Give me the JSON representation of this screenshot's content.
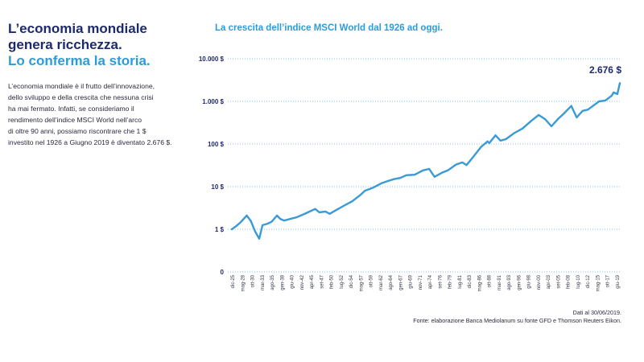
{
  "header": {
    "line1": "L’economia mondiale",
    "line2": "genera ricchezza.",
    "line3": "Lo conferma la storia."
  },
  "body": {
    "lines": [
      "L’economia mondiale è il frutto dell’innovazione,",
      "dello sviluppo e della crescita che nessuna crisi",
      "ha mai fermato. Infatti, se consideriamo il",
      "rendimento dell’indice MSCI World nell’arco",
      "di oltre 90 anni, possiamo riscontrare che 1 $",
      "investito nel 1926 a Giugno 2019 è diventato 2.676 $."
    ]
  },
  "footer": {
    "date": "Dati al 30/06/2019.",
    "source": "Fonte: elaborazione Banca Mediolanum su fonte GFD e Thomson Reuters Eikon."
  },
  "colors": {
    "navy": "#1e2a6e",
    "accent": "#2e9bd9",
    "line": "#3a9ad6",
    "grid": "#5aaee0"
  },
  "chart_data": {
    "type": "line",
    "title": "La crescita dell’indice MSCI World dal 1926 ad oggi.",
    "y_scale": "log",
    "y_ticks": [
      {
        "value": 0,
        "label": "0"
      },
      {
        "value": 1,
        "label": "1 $"
      },
      {
        "value": 10,
        "label": "10 $"
      },
      {
        "value": 100,
        "label": "100 $"
      },
      {
        "value": 1000,
        "label": "1.000 $"
      },
      {
        "value": 10000,
        "label": "10.000 $"
      }
    ],
    "grid": "horizontal dotted",
    "x_tick_labels": [
      "dic-25",
      "mag-28",
      "ott-30",
      "mar-33",
      "ago-35",
      "gen-38",
      "giu-40",
      "nov-42",
      "apr-45",
      "set-47",
      "feb-50",
      "lug-52",
      "dic-54",
      "mag-57",
      "ott-59",
      "mar-62",
      "ago-64",
      "gen-67",
      "giu-69",
      "nov-71",
      "apr-74",
      "set-76",
      "feb-79",
      "lug-81",
      "dic-83",
      "mag-86",
      "ott-88",
      "mar-91",
      "ago-93",
      "gen-96",
      "giu-98",
      "nov-00",
      "apr-03",
      "set-05",
      "feb-08",
      "lug-10",
      "dic-12",
      "mag-15",
      "ott-17",
      "giu-19"
    ],
    "series": [
      {
        "values": [
          {
            "x": 1925.9,
            "y": 1.0
          },
          {
            "x": 1927.0,
            "y": 1.2
          },
          {
            "x": 1928.0,
            "y": 1.45
          },
          {
            "x": 1929.5,
            "y": 2.1
          },
          {
            "x": 1930.5,
            "y": 1.55
          },
          {
            "x": 1931.5,
            "y": 0.9
          },
          {
            "x": 1932.5,
            "y": 0.6
          },
          {
            "x": 1933.3,
            "y": 1.25
          },
          {
            "x": 1934.5,
            "y": 1.35
          },
          {
            "x": 1935.5,
            "y": 1.5
          },
          {
            "x": 1936.8,
            "y": 2.1
          },
          {
            "x": 1937.6,
            "y": 1.75
          },
          {
            "x": 1938.5,
            "y": 1.6
          },
          {
            "x": 1940.0,
            "y": 1.75
          },
          {
            "x": 1941.5,
            "y": 1.9
          },
          {
            "x": 1943.0,
            "y": 2.2
          },
          {
            "x": 1945.0,
            "y": 2.7
          },
          {
            "x": 1946.0,
            "y": 3.0
          },
          {
            "x": 1947.0,
            "y": 2.5
          },
          {
            "x": 1948.5,
            "y": 2.6
          },
          {
            "x": 1949.5,
            "y": 2.3
          },
          {
            "x": 1951.0,
            "y": 2.8
          },
          {
            "x": 1953.0,
            "y": 3.6
          },
          {
            "x": 1955.0,
            "y": 4.6
          },
          {
            "x": 1957.0,
            "y": 6.5
          },
          {
            "x": 1958.0,
            "y": 8.0
          },
          {
            "x": 1960.0,
            "y": 9.5
          },
          {
            "x": 1962.0,
            "y": 12.0
          },
          {
            "x": 1963.5,
            "y": 13.5
          },
          {
            "x": 1965.0,
            "y": 15.0
          },
          {
            "x": 1966.5,
            "y": 16.0
          },
          {
            "x": 1968.0,
            "y": 18.5
          },
          {
            "x": 1970.0,
            "y": 19.0
          },
          {
            "x": 1972.0,
            "y": 24.0
          },
          {
            "x": 1973.5,
            "y": 26.0
          },
          {
            "x": 1974.8,
            "y": 17.0
          },
          {
            "x": 1976.5,
            "y": 21.0
          },
          {
            "x": 1978.0,
            "y": 24.0
          },
          {
            "x": 1980.0,
            "y": 33.0
          },
          {
            "x": 1981.5,
            "y": 37.0
          },
          {
            "x": 1982.5,
            "y": 32.0
          },
          {
            "x": 1984.0,
            "y": 48.0
          },
          {
            "x": 1986.0,
            "y": 85.0
          },
          {
            "x": 1987.6,
            "y": 115.0
          },
          {
            "x": 1988.0,
            "y": 105.0
          },
          {
            "x": 1989.5,
            "y": 160.0
          },
          {
            "x": 1990.7,
            "y": 120.0
          },
          {
            "x": 1992.0,
            "y": 130.0
          },
          {
            "x": 1994.0,
            "y": 180.0
          },
          {
            "x": 1996.0,
            "y": 230.0
          },
          {
            "x": 1998.0,
            "y": 340.0
          },
          {
            "x": 1999.9,
            "y": 480.0
          },
          {
            "x": 2001.5,
            "y": 380.0
          },
          {
            "x": 2003.0,
            "y": 260.0
          },
          {
            "x": 2004.5,
            "y": 380.0
          },
          {
            "x": 2006.0,
            "y": 520.0
          },
          {
            "x": 2007.8,
            "y": 780.0
          },
          {
            "x": 2009.1,
            "y": 420.0
          },
          {
            "x": 2010.5,
            "y": 600.0
          },
          {
            "x": 2011.8,
            "y": 640.0
          },
          {
            "x": 2013.0,
            "y": 780.0
          },
          {
            "x": 2014.5,
            "y": 1000.0
          },
          {
            "x": 2016.0,
            "y": 1050.0
          },
          {
            "x": 2017.5,
            "y": 1350.0
          },
          {
            "x": 2018.0,
            "y": 1620.0
          },
          {
            "x": 2018.9,
            "y": 1480.0
          },
          {
            "x": 2019.5,
            "y": 2676.0
          }
        ]
      }
    ],
    "end_label": "2.676 $"
  }
}
